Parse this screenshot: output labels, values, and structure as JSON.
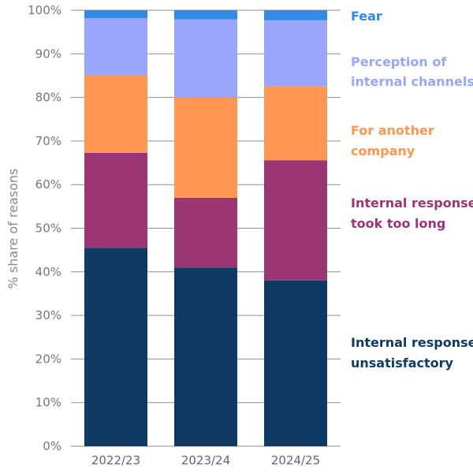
{
  "chart_data": {
    "type": "bar",
    "stacked": true,
    "categories": [
      "2022/23",
      "2023/24",
      "2024/25"
    ],
    "series": [
      {
        "name": "Internal response unsatisfactory",
        "legend_lines": [
          "Internal response",
          "unsatisfactory"
        ],
        "color": "#0f3a64",
        "values": [
          45.5,
          41,
          38
        ]
      },
      {
        "name": "Internal response took too long",
        "legend_lines": [
          "Internal response",
          "took too long"
        ],
        "color": "#9c3573",
        "values": [
          21.8,
          16,
          27.6
        ]
      },
      {
        "name": "For another company",
        "legend_lines": [
          "For another",
          "company"
        ],
        "color": "#ff9652",
        "values": [
          17.7,
          23,
          16.9
        ]
      },
      {
        "name": "Perception of internal channels",
        "legend_lines": [
          "Perception of",
          "internal channels"
        ],
        "color": "#99a6fb",
        "values": [
          13.2,
          17.9,
          15.2
        ]
      },
      {
        "name": "Fear",
        "legend_lines": [
          "Fear"
        ],
        "color": "#2f8ae8",
        "values": [
          1.8,
          2.1,
          2.3
        ]
      }
    ],
    "ylabel": "% share of reasons",
    "yticks": [
      "0%",
      "10%",
      "20%",
      "30%",
      "40%",
      "50%",
      "60%",
      "70%",
      "80%",
      "90%",
      "100%"
    ],
    "ylim": [
      0,
      100
    ],
    "grid": true,
    "legend_position": "right"
  }
}
